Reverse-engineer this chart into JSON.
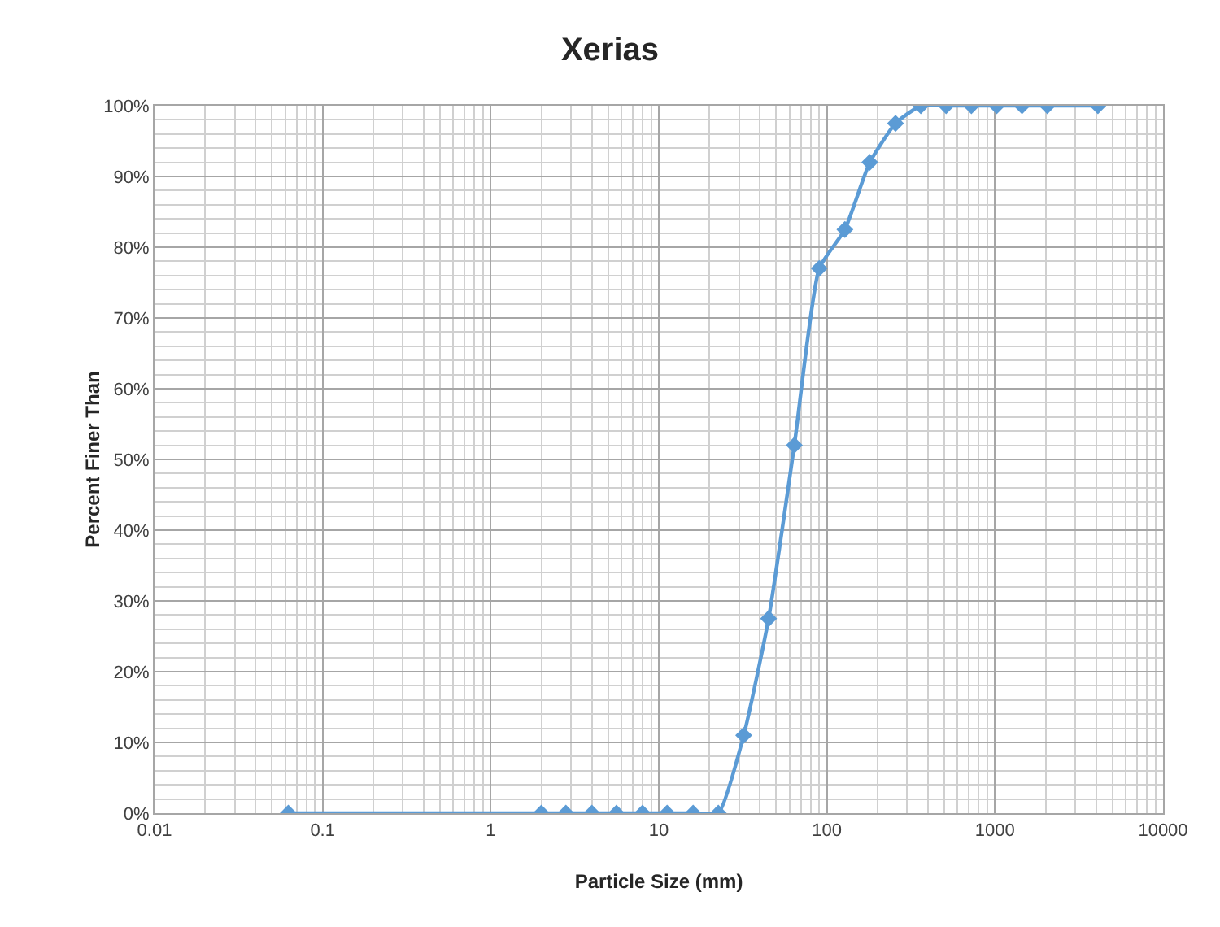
{
  "chart_data": {
    "type": "line",
    "title": "Xerias",
    "xlabel": "Particle Size (mm)",
    "ylabel": "Percent Finer Than",
    "x": [
      0.0625,
      2,
      2.8,
      4,
      5.6,
      8,
      11.2,
      16,
      22.6,
      32,
      45,
      64,
      90,
      128,
      180,
      256,
      362,
      512,
      724,
      1024,
      1448,
      2048,
      4096
    ],
    "series": [
      {
        "color": "#5b9bd5",
        "values": [
          0,
          0,
          0,
          0,
          0,
          0,
          0,
          0,
          0,
          11,
          27.5,
          52,
          77,
          82.5,
          92,
          97.5,
          100,
          100,
          100,
          100,
          100,
          100,
          100
        ]
      }
    ],
    "log": "x",
    "xlim": [
      0.01,
      10000
    ],
    "xticks": [
      0.01,
      0.1,
      1,
      10,
      100,
      1000,
      10000
    ],
    "ylim": [
      0,
      100
    ],
    "yticks": [
      {
        "value": 0,
        "label": "0%"
      },
      {
        "value": 10,
        "label": "10%"
      },
      {
        "value": 20,
        "label": "20%"
      },
      {
        "value": 30,
        "label": "30%"
      },
      {
        "value": 40,
        "label": "40%"
      },
      {
        "value": 50,
        "label": "50%"
      },
      {
        "value": 60,
        "label": "60%"
      },
      {
        "value": 70,
        "label": "70%"
      },
      {
        "value": 80,
        "label": "80%"
      },
      {
        "value": 90,
        "label": "90%"
      },
      {
        "value": 100,
        "label": "100%"
      }
    ],
    "grid": true,
    "marker": "diamond",
    "line_style": "solid"
  }
}
